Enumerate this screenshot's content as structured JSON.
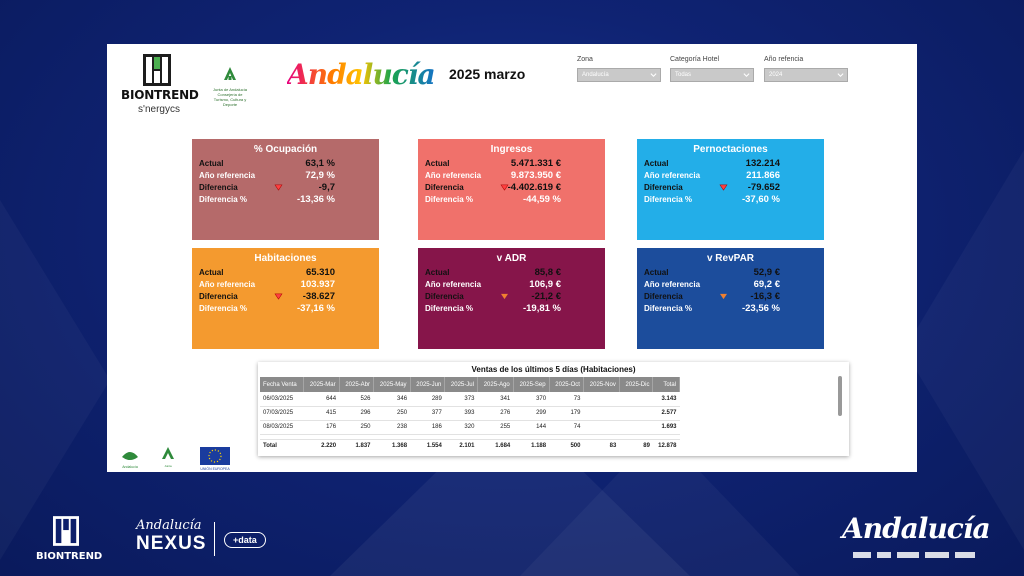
{
  "brand": {
    "biontrend": "BIONTREND",
    "synergy": "s'nergycs",
    "junta": "Junta de Andalucía",
    "junta_sub": "Consejería de Turismo, Cultura y Deporte",
    "andalucia": "Andalucía",
    "nexus_top": "Andalucía",
    "nexus_main": "NEXUS",
    "data_badge": "+data"
  },
  "header": {
    "period": "2025 marzo"
  },
  "filters": [
    {
      "label": "Zona",
      "value": "Andalucía"
    },
    {
      "label": "Categoría Hotel",
      "value": "Todas"
    },
    {
      "label": "Año refencia",
      "value": "2024"
    }
  ],
  "kpi_labels": {
    "actual": "Actual",
    "ref": "Año referencia",
    "diff": "Diferencia",
    "diff_pct": "Diferencia %"
  },
  "kpis": [
    {
      "title": "% Ocupación",
      "actual": "63,1 %",
      "ref": "72,9 %",
      "diff": "-9,7",
      "diff_pct": "-13,36 %",
      "color": "#b56a6a"
    },
    {
      "title": "Ingresos",
      "actual": "5.471.331 €",
      "ref": "9.873.950 €",
      "diff": "-4.402.619 €",
      "diff_pct": "-44,59 %",
      "color": "#f0716b"
    },
    {
      "title": "Pernoctaciones",
      "actual": "132.214",
      "ref": "211.866",
      "diff": "-79.652",
      "diff_pct": "-37,60 %",
      "color": "#23aee8"
    },
    {
      "title": "Habitaciones",
      "actual": "65.310",
      "ref": "103.937",
      "diff": "-38.627",
      "diff_pct": "-37,16 %",
      "color": "#f49a2f"
    },
    {
      "title": "v ADR",
      "actual": "85,8 €",
      "ref": "106,9 €",
      "diff": "-21,2 €",
      "diff_pct": "-19,81 %",
      "color": "#86154a"
    },
    {
      "title": "v RevPAR",
      "actual": "52,9 €",
      "ref": "69,2 €",
      "diff": "-16,3 €",
      "diff_pct": "-23,56 %",
      "color": "#1c4d9c"
    }
  ],
  "table": {
    "title": "Ventas de los últimos 5 días (Habitaciones)",
    "headers": [
      "Fecha Venta",
      "2025-Mar",
      "2025-Abr",
      "2025-May",
      "2025-Jun",
      "2025-Jul",
      "2025-Ago",
      "2025-Sep",
      "2025-Oct",
      "2025-Nov",
      "2025-Dic",
      "Total"
    ],
    "rows": [
      [
        "06/03/2025",
        "644",
        "526",
        "346",
        "289",
        "373",
        "341",
        "370",
        "73",
        "",
        "",
        "3.143"
      ],
      [
        "07/03/2025",
        "415",
        "296",
        "250",
        "377",
        "393",
        "276",
        "299",
        "179",
        "",
        "",
        "2.577"
      ],
      [
        "08/03/2025",
        "176",
        "250",
        "238",
        "186",
        "320",
        "255",
        "144",
        "74",
        "",
        "",
        "1.693"
      ]
    ],
    "total_row": [
      "Total",
      "2.220",
      "1.837",
      "1.368",
      "1.554",
      "2.101",
      "1.684",
      "1.188",
      "500",
      "83",
      "89",
      "12.878"
    ]
  }
}
